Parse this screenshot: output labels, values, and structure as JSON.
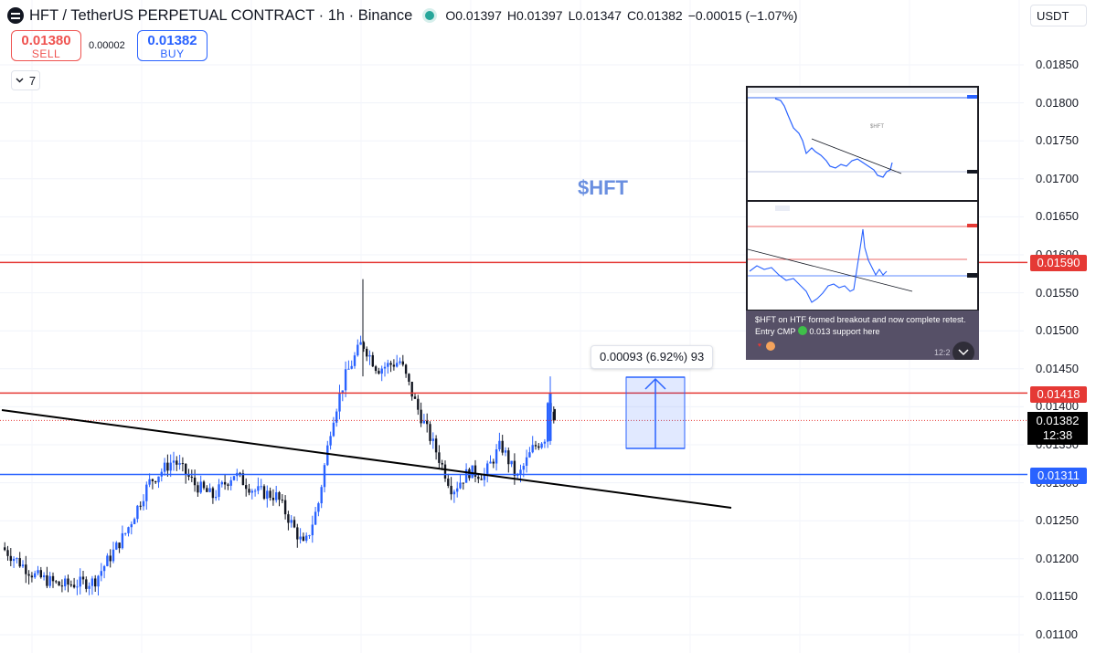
{
  "header": {
    "symbol_title": "HFT / TetherUS PERPETUAL CONTRACT · 1h · Binance",
    "ohlc": {
      "open": "O0.01397",
      "high": "H0.01397",
      "low": "L0.01347",
      "close": "C0.01382",
      "change": "−0.00015 (−1.07%)"
    }
  },
  "trade": {
    "sell_price": "0.01380",
    "sell_label": "SELL",
    "spread": "0.00002",
    "buy_price": "0.01382",
    "buy_label": "BUY"
  },
  "indicators_count": "7",
  "currency": "USDT",
  "price_axis": {
    "labels": [
      "0.01850",
      "0.01800",
      "0.01750",
      "0.01700",
      "0.01650",
      "0.01600",
      "0.01550",
      "0.01500",
      "0.01450",
      "0.01400",
      "0.01350",
      "0.01300",
      "0.01250",
      "0.01200",
      "0.01150",
      "0.01100"
    ]
  },
  "levels": {
    "resistance_high": "0.01590",
    "resistance_mid": "0.01418",
    "support": "0.01311",
    "current_price": "0.01382",
    "countdown": "12:38"
  },
  "annotation_text": "$HFT",
  "measure_label": "0.00093 (6.92%) 93",
  "inset": {
    "mini_label": "$HFT",
    "message_line1": "$HFT on HTF formed breakout and now complete retest.",
    "message_line2_prefix": "Entry CMP",
    "message_line2_suffix": "0.013 support here",
    "time": "12:2"
  },
  "colors": {
    "up": "#2962ff",
    "down": "#131722",
    "resistance": "#e53935",
    "support": "#2962ff",
    "trendline": "#000000"
  }
}
